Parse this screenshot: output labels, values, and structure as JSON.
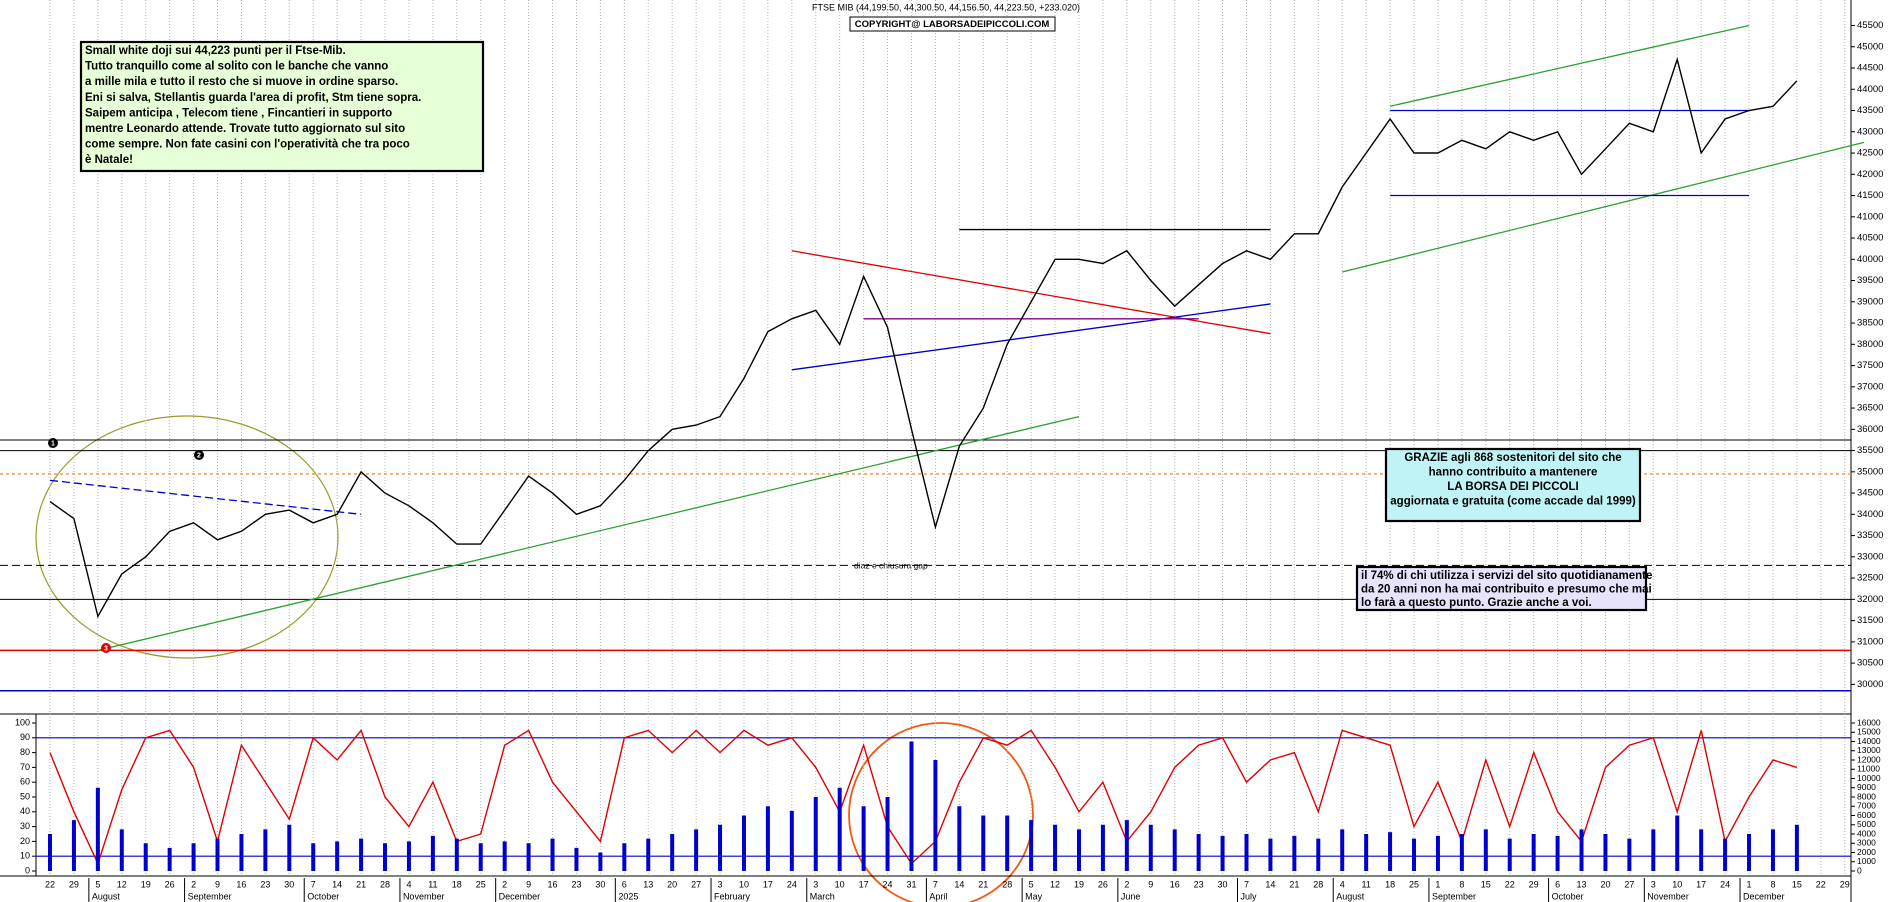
{
  "chart_data": [
    {
      "type": "line",
      "title": "FTSE MIB (44,199.50, 44,300.50, 44,156.50, 44,223.50, +233.020)",
      "subtitle": "COPYRIGHT@ LABORSADEIPICCOLI.COM",
      "ylim": [
        29350,
        46100
      ],
      "yticks": [
        30000,
        30500,
        31000,
        31500,
        32000,
        32500,
        33000,
        33500,
        34000,
        34500,
        35000,
        35500,
        36000,
        36500,
        37000,
        37500,
        38000,
        38500,
        39000,
        39500,
        40000,
        40500,
        41000,
        41500,
        42000,
        42500,
        43000,
        43500,
        44000,
        44500,
        45000,
        45500
      ],
      "grid": false,
      "series": [
        {
          "color": "#000000",
          "values": [
            34300,
            33900,
            31600,
            32600,
            33000,
            33600,
            33800,
            33400,
            33600,
            34000,
            34100,
            33800,
            34000,
            35000,
            34500,
            34200,
            33800,
            33300,
            33300,
            34100,
            34900,
            34500,
            34000,
            34200,
            34800,
            35500,
            36000,
            36100,
            36300,
            37200,
            38300,
            38600,
            38800,
            38000,
            39600,
            38400,
            36000,
            33700,
            35600,
            36500,
            38000,
            39000,
            40000,
            40000,
            39900,
            40200,
            39500,
            38900,
            39400,
            39900,
            40200,
            40000,
            40600,
            40600,
            41700,
            42500,
            43300,
            42500,
            42500,
            42800,
            42600,
            43000,
            42800,
            43000,
            42000,
            42600,
            43200,
            43000,
            44700,
            42500,
            43300,
            43500,
            43600,
            44200,
            null,
            null
          ]
        }
      ],
      "levels": [
        {
          "value": 35750,
          "color": "#000000"
        },
        {
          "value": 35500,
          "color": "#000000"
        },
        {
          "value": 34950,
          "color": "#f4a460",
          "style": "dashed"
        },
        {
          "value": 32800,
          "color": "#000000",
          "style": "dashed"
        },
        {
          "value": 32000,
          "color": "#000000"
        },
        {
          "value": 30800,
          "color": "#e00000"
        },
        {
          "value": 29850,
          "color": "#0000cc"
        }
      ],
      "trendlines": [
        {
          "color": "#2ca02c",
          "from": [
            56,
            43600
          ],
          "to": [
            71,
            45500
          ]
        },
        {
          "color": "#2ca02c",
          "from": [
            54,
            39700
          ],
          "to": [
            75.8,
            42750
          ]
        },
        {
          "color": "#0000cc",
          "from": [
            56,
            43500
          ],
          "to": [
            71,
            43500
          ]
        },
        {
          "color": "#0000cc",
          "from": [
            56,
            41500
          ],
          "to": [
            71,
            41500
          ]
        },
        {
          "color": "#e00000",
          "from": [
            31,
            40200
          ],
          "to": [
            51,
            38250
          ]
        },
        {
          "color": "#0000cc",
          "from": [
            31,
            37400
          ],
          "to": [
            51,
            38950
          ]
        },
        {
          "color": "#000000",
          "from": [
            38,
            40700
          ],
          "to": [
            51,
            40700
          ]
        },
        {
          "color": "#800080",
          "from": [
            34,
            38600
          ],
          "to": [
            48,
            38600
          ]
        },
        {
          "color": "#2ca02c",
          "from": [
            2,
            30800
          ],
          "to": [
            43,
            36300
          ]
        },
        {
          "color": "#0000cc",
          "from": [
            0,
            34800
          ],
          "to": [
            13,
            34000
          ],
          "style": "dashed"
        }
      ],
      "annotations": {
        "note": [
          "Small white doji sui 44,223 punti per il Ftse-Mib.",
          "Tutto tranquillo come al solito con le banche che vanno",
          "a mille mila e tutto il resto che si muove in ordine sparso.",
          "Eni si salva, Stellantis guarda l'area di profit, Stm tiene sopra.",
          "Saipem anticipa , Telecom tiene , Fincantieri in supporto",
          "mentre Leonardo attende.  Trovate tutto aggiornato sul sito",
          "come sempre.  Non fate casini con l'operatività che tra poco",
          "è Natale!"
        ],
        "thanks": [
          "GRAZIE agli 868  sostenitori del sito che",
          "hanno contribuito a mantenere",
          "LA BORSA DEI PICCOLI",
          "aggiornata e gratuita (come accade dal 1999)"
        ],
        "users": [
          "il 74%  di chi utilizza i servizi del sito quotidianamente",
          "da 20 anni non ha mai contribuito e presumo che mai",
          "lo farà a questo punto. Grazie anche a voi."
        ],
        "gap": "diaz e chiusura gap",
        "markers": [
          "1",
          "2",
          "3"
        ]
      }
    },
    {
      "type": "line",
      "categories": [
        "22",
        "29",
        "5",
        "12",
        "19",
        "26",
        "2",
        "9",
        "16",
        "23",
        "30",
        "7",
        "14",
        "21",
        "28",
        "4",
        "11",
        "18",
        "25",
        "2",
        "9",
        "16",
        "23",
        "30",
        "6",
        "13",
        "20",
        "27",
        "3",
        "10",
        "17",
        "24",
        "3",
        "10",
        "17",
        "24",
        "31",
        "7",
        "14",
        "21",
        "28",
        "5",
        "12",
        "19",
        "26",
        "2",
        "9",
        "16",
        "23",
        "30",
        "7",
        "14",
        "21",
        "28",
        "4",
        "11",
        "18",
        "25",
        "1",
        "8",
        "15",
        "22",
        "29",
        "6",
        "13",
        "20",
        "27",
        "3",
        "10",
        "17",
        "24",
        "1",
        "8",
        "15",
        "22",
        "29"
      ],
      "months": [
        "August",
        "September",
        "October",
        "November",
        "December",
        "2025",
        "February",
        "March",
        "April",
        "May",
        "June",
        "July",
        "August",
        "September",
        "October",
        "November",
        "December"
      ],
      "ylim": [
        0,
        100
      ],
      "yticks": [
        0,
        10,
        20,
        30,
        40,
        50,
        60,
        70,
        80,
        90,
        100
      ],
      "y2lim": [
        0,
        16000
      ],
      "y2ticks": [
        0,
        1000,
        2000,
        3000,
        4000,
        5000,
        6000,
        7000,
        8000,
        9000,
        10000,
        11000,
        12000,
        13000,
        14000,
        15000,
        16000
      ],
      "levels": [
        10,
        90
      ],
      "levels_color": "#0000cc",
      "series": [
        {
          "color": "#e00000",
          "values": [
            80,
            40,
            5,
            55,
            90,
            95,
            70,
            20,
            85,
            60,
            35,
            90,
            75,
            95,
            50,
            30,
            60,
            20,
            25,
            85,
            95,
            60,
            40,
            20,
            90,
            95,
            80,
            95,
            80,
            95,
            85,
            90,
            70,
            40,
            85,
            30,
            5,
            20,
            60,
            90,
            85,
            95,
            70,
            40,
            60,
            20,
            40,
            70,
            85,
            90,
            60,
            75,
            80,
            40,
            95,
            90,
            85,
            30,
            60,
            20,
            75,
            30,
            80,
            40,
            20,
            70,
            85,
            90,
            40,
            95,
            20,
            50,
            75,
            70,
            null,
            null
          ]
        },
        {
          "color": "#0000cc",
          "type": "bar",
          "axis": "y2",
          "values": [
            4000,
            5500,
            9000,
            4500,
            3000,
            2500,
            3000,
            3500,
            4000,
            4500,
            5000,
            3000,
            3200,
            3500,
            3000,
            3200,
            3800,
            3500,
            3000,
            3200,
            3000,
            3500,
            2500,
            2000,
            3000,
            3500,
            4000,
            4500,
            5000,
            6000,
            7000,
            6500,
            8000,
            9000,
            7000,
            8000,
            14000,
            12000,
            7000,
            6000,
            6000,
            5500,
            5000,
            4500,
            5000,
            5500,
            5000,
            4500,
            4000,
            3800,
            4000,
            3500,
            3800,
            3500,
            4500,
            4000,
            4200,
            3500,
            3800,
            4000,
            4500,
            3500,
            4000,
            3800,
            4500,
            4000,
            3500,
            4500,
            6000,
            4500,
            3500,
            4000,
            4500,
            5000,
            null,
            null
          ]
        }
      ]
    }
  ]
}
